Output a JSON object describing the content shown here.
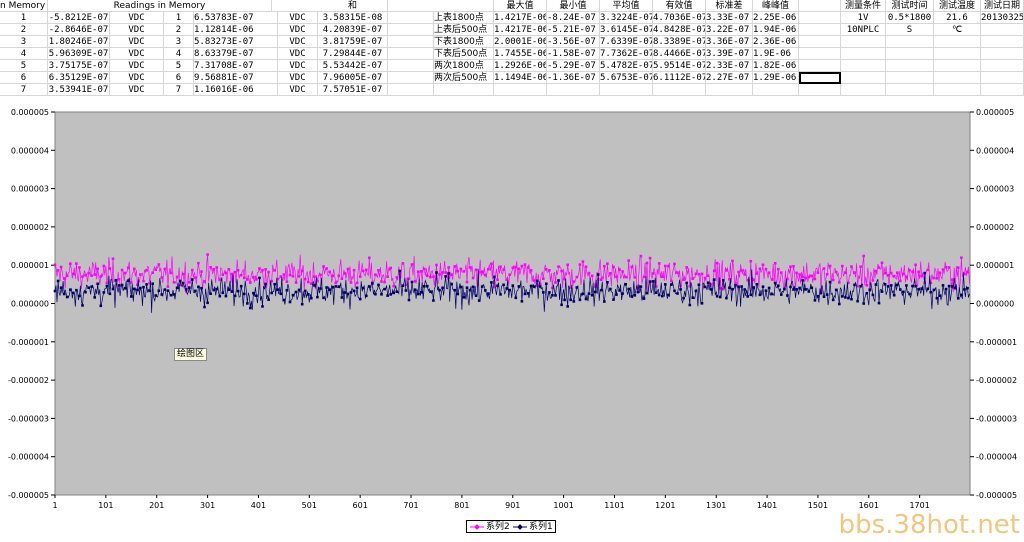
{
  "sheet": {
    "header": [
      "n Memory",
      "Readings in Memory",
      "和",
      "最大值",
      "最小值",
      "平均值",
      "有效值",
      "标准差",
      "峰峰值",
      "测量条件",
      "测试时间",
      "测试温度",
      "测试日期"
    ],
    "rows": [
      [
        "1",
        "-5.8212E-07",
        "VDC",
        "1",
        "6.53783E-07",
        "VDC",
        "3.58315E-08",
        "上表1800点",
        "1.4217E-06",
        "-8.24E-07",
        "3.3224E-07",
        "4.7036E-07",
        "3.33E-07",
        "2.25E-06",
        "1V",
        "0.5*1800",
        "21.6",
        "20130325"
      ],
      [
        "2",
        "-2.8646E-07",
        "VDC",
        "2",
        "1.12814E-06",
        "VDC",
        "4.20839E-07",
        "上表后500点",
        "1.4217E-06",
        "-5.21E-07",
        "3.6145E-07",
        "4.8428E-07",
        "3.22E-07",
        "1.94E-06",
        "10NPLC",
        "S",
        "℃",
        ""
      ],
      [
        "3",
        "1.80246E-07",
        "VDC",
        "3",
        "5.83273E-07",
        "VDC",
        "3.81759E-07",
        "下表1800点",
        "2.0001E-06",
        "-3.56E-07",
        "7.6339E-07",
        "8.3389E-07",
        "3.36E-07",
        "2.36E-06",
        "",
        "",
        "",
        ""
      ],
      [
        "4",
        "5.96309E-07",
        "VDC",
        "4",
        "8.63379E-07",
        "VDC",
        "7.29844E-07",
        "下表后500点",
        "1.7455E-06",
        "-1.58E-07",
        "7.7362E-07",
        "8.4466E-07",
        "3.39E-07",
        "1.9E-06",
        "",
        "",
        "",
        ""
      ],
      [
        "5",
        "3.75175E-07",
        "VDC",
        "5",
        "7.31708E-07",
        "VDC",
        "5.53442E-07",
        "两次1800点",
        "1.2926E-06",
        "-5.29E-07",
        "5.4782E-07",
        "5.9514E-07",
        "2.33E-07",
        "1.82E-06",
        "",
        "",
        "",
        ""
      ],
      [
        "6",
        "6.35129E-07",
        "VDC",
        "6",
        "9.56881E-07",
        "VDC",
        "7.96005E-07",
        "两次后500点",
        "1.1494E-06",
        "-1.36E-07",
        "5.6753E-07",
        "6.1112E-07",
        "2.27E-07",
        "1.29E-06",
        "",
        "",
        "",
        ""
      ],
      [
        "7",
        "3.53941E-07",
        "VDC",
        "7",
        "1.16016E-06",
        "VDC",
        "7.57051E-07",
        "",
        "",
        "",
        "",
        "",
        "",
        "",
        "",
        "",
        "",
        ""
      ]
    ]
  },
  "tooltip": "绘图区",
  "watermark": "bbs.38hot.net",
  "chart_data": {
    "type": "line",
    "title": "",
    "xlabel": "",
    "ylabel": "",
    "x_tick_labels": [
      "1",
      "101",
      "201",
      "301",
      "401",
      "501",
      "601",
      "701",
      "801",
      "901",
      "1001",
      "1101",
      "1201",
      "1301",
      "1401",
      "1501",
      "1601",
      "1701"
    ],
    "y_tick_labels": [
      "0.000005",
      "0.000004",
      "0.000003",
      "0.000002",
      "0.000001",
      "0.000000",
      "-0.000001",
      "-0.000002",
      "-0.000003",
      "-0.000004",
      "-0.000005"
    ],
    "ylim": [
      -5e-06,
      5e-06
    ],
    "xlim": [
      1,
      1800
    ],
    "plot_bg": "#c0c0c0",
    "legend_position": "bottom-center",
    "series": [
      {
        "name": "系列2",
        "color": "#ff00ff",
        "mean": 7.6e-07,
        "spread": 3.4e-07,
        "max": 2e-06,
        "min": -3.6e-07
      },
      {
        "name": "系列1",
        "color": "#000066",
        "mean": 3.3e-07,
        "spread": 3.3e-07,
        "max": 1.42e-06,
        "min": -8.2e-07
      }
    ]
  }
}
